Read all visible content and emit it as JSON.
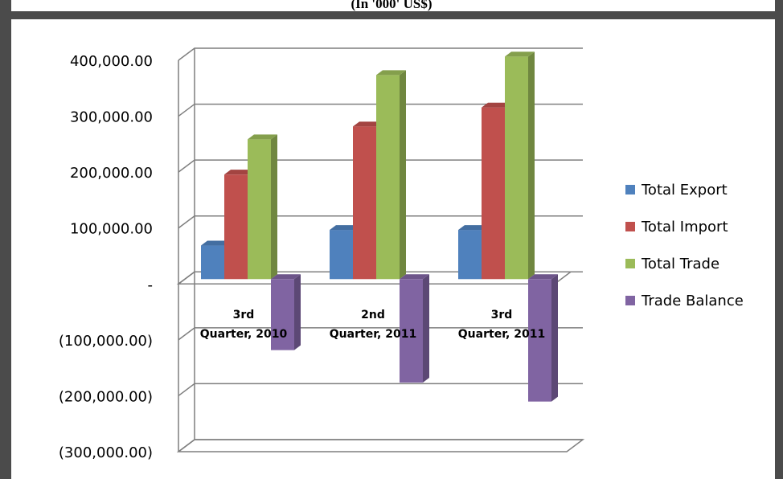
{
  "header": {
    "title": "(In '000' US$)"
  },
  "colors": {
    "frame": "#4b4b4b",
    "grid": "#7f7f7f",
    "export": "#4f81bd",
    "import": "#c0504d",
    "trade": "#9bbb59",
    "balance": "#8064a2"
  },
  "chart_data": {
    "type": "bar",
    "subtype": "3d-clustered-column",
    "title": "(In '000' US$)",
    "categories": [
      "3rd\nQuarter, 2010",
      "2nd\nQuarter, 2011",
      "3rd\nQuarter, 2011"
    ],
    "series": [
      {
        "name": "Total Export",
        "values": [
          60000,
          88000,
          88000
        ]
      },
      {
        "name": "Total Import",
        "values": [
          187000,
          273000,
          307000
        ]
      },
      {
        "name": "Total Trade",
        "values": [
          250000,
          365000,
          398000
        ]
      },
      {
        "name": "Trade Balance",
        "values": [
          -127000,
          -185000,
          -219000
        ]
      }
    ],
    "ylim": [
      -300000,
      400000
    ],
    "ytick_values": [
      400000,
      300000,
      200000,
      100000,
      0,
      -100000,
      -200000,
      -300000
    ],
    "ytick_labels": [
      "400,000.00",
      "300,000.00",
      "200,000.00",
      "100,000.00",
      "-",
      "(100,000.00)",
      "(200,000.00)",
      "(300,000.00)"
    ],
    "grid": true,
    "legend_position": "right"
  }
}
